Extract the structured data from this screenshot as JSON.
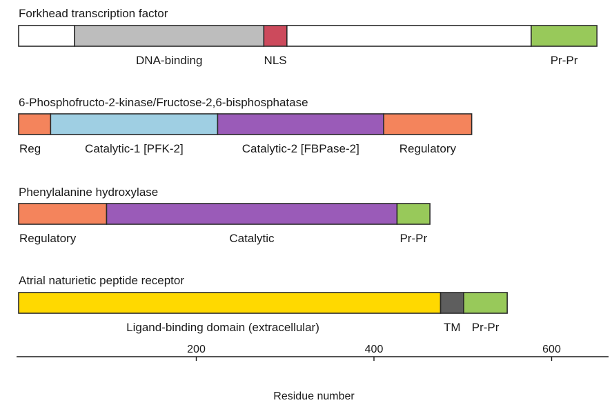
{
  "colors": {
    "regulatory": "#f4845c",
    "catalytic1": "#9fcfe3",
    "catalytic2": "#9a5bb8",
    "dna_binding": "#bdbdbd",
    "nls": "#cc4a5c",
    "pr_pr": "#98c95a",
    "ligand": "#ffd900",
    "tm": "#5e5e5e",
    "empty": "#ffffff",
    "outline": "#2a2a2a"
  },
  "proteins": [
    {
      "name": "Forkhead transcription factor",
      "domains": [
        {
          "start": 0,
          "end": 63,
          "color": "empty",
          "label": ""
        },
        {
          "start": 63,
          "end": 276,
          "color": "dna_binding",
          "label": "DNA-binding"
        },
        {
          "start": 276,
          "end": 302,
          "color": "nls",
          "label": "NLS"
        },
        {
          "start": 302,
          "end": 577,
          "color": "empty",
          "label": ""
        },
        {
          "start": 577,
          "end": 651,
          "color": "pr_pr",
          "label": "Pr-Pr"
        }
      ]
    },
    {
      "name": "6-Phosphofructo-2-kinase/Fructose-2,6-bisphosphatase",
      "domains": [
        {
          "start": 0,
          "end": 36,
          "color": "regulatory",
          "label": "Reg"
        },
        {
          "start": 36,
          "end": 224,
          "color": "catalytic1",
          "label": "Catalytic-1 [PFK-2]"
        },
        {
          "start": 224,
          "end": 411,
          "color": "catalytic2",
          "label": "Catalytic-2 [FBPase-2]"
        },
        {
          "start": 411,
          "end": 510,
          "color": "regulatory",
          "label": "Regulatory"
        }
      ]
    },
    {
      "name": "Phenylalanine hydroxylase",
      "domains": [
        {
          "start": 0,
          "end": 99,
          "color": "regulatory",
          "label": "Regulatory"
        },
        {
          "start": 99,
          "end": 426,
          "color": "catalytic2",
          "label": "Catalytic"
        },
        {
          "start": 426,
          "end": 463,
          "color": "pr_pr",
          "label": "Pr-Pr"
        }
      ]
    },
    {
      "name": "Atrial naturietic peptide receptor",
      "domains": [
        {
          "start": 0,
          "end": 475,
          "color": "ligand",
          "label": "Ligand-binding domain (extracellular)"
        },
        {
          "start": 475,
          "end": 501,
          "color": "tm",
          "label": "TM"
        },
        {
          "start": 501,
          "end": 550,
          "color": "pr_pr",
          "label": "Pr-Pr"
        }
      ]
    }
  ],
  "axis": {
    "label": "Residue number",
    "range": [
      0,
      665
    ],
    "ticks": [
      200,
      400,
      600
    ]
  }
}
